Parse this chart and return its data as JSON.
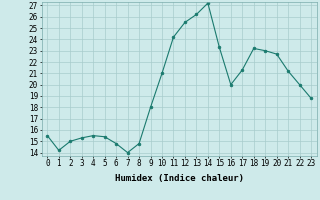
{
  "x": [
    0,
    1,
    2,
    3,
    4,
    5,
    6,
    7,
    8,
    9,
    10,
    11,
    12,
    13,
    14,
    15,
    16,
    17,
    18,
    19,
    20,
    21,
    22,
    23
  ],
  "y": [
    15.5,
    14.2,
    15.0,
    15.3,
    15.5,
    15.4,
    14.8,
    14.0,
    14.8,
    18.0,
    21.0,
    24.2,
    25.5,
    26.2,
    27.2,
    23.3,
    20.0,
    21.3,
    23.2,
    23.0,
    22.7,
    21.2,
    20.0,
    18.8
  ],
  "xlim": [
    -0.5,
    23.5
  ],
  "ylim": [
    13.7,
    27.3
  ],
  "yticks": [
    14,
    15,
    16,
    17,
    18,
    19,
    20,
    21,
    22,
    23,
    24,
    25,
    26,
    27
  ],
  "xticks": [
    0,
    1,
    2,
    3,
    4,
    5,
    6,
    7,
    8,
    9,
    10,
    11,
    12,
    13,
    14,
    15,
    16,
    17,
    18,
    19,
    20,
    21,
    22,
    23
  ],
  "xlabel": "Humidex (Indice chaleur)",
  "line_color": "#1a7a6e",
  "marker": "o",
  "marker_size": 2.0,
  "bg_color": "#ceeaea",
  "grid_color": "#a8cccc",
  "tick_fontsize": 5.5,
  "label_fontsize": 6.5
}
